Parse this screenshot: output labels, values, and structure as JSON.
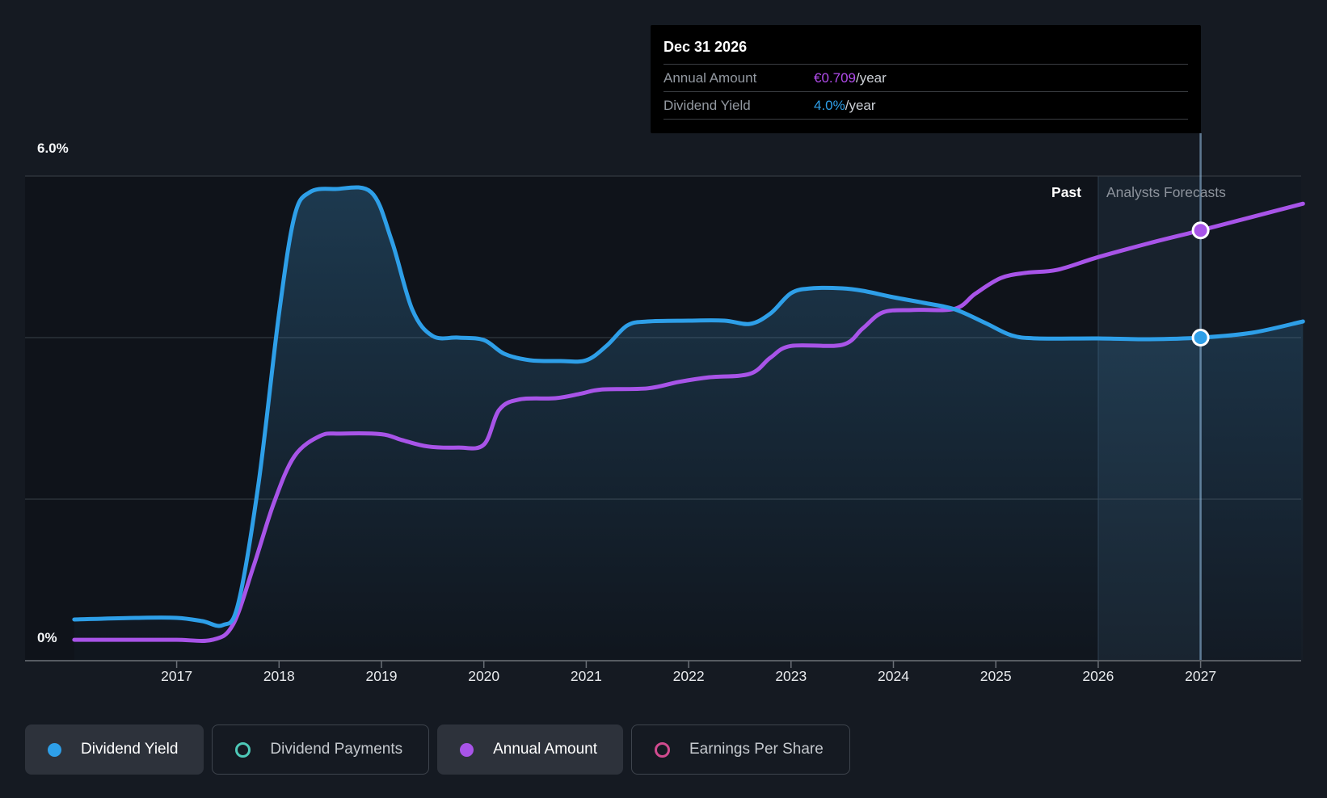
{
  "page": {
    "background": "#151a22",
    "plot_background": "#0f131a"
  },
  "tooltip": {
    "title": "Dec 31 2026",
    "rows": [
      {
        "label": "Annual Amount",
        "value": "€0.709",
        "suffix": "/year",
        "value_color": "#b14ceb"
      },
      {
        "label": "Dividend Yield",
        "value": "4.0%",
        "suffix": "/year",
        "value_color": "#2e9fe8"
      }
    ]
  },
  "axis": {
    "y_top_label": "6.0%",
    "y_bottom_label": "0%",
    "x_tick_labels": [
      "2017",
      "2018",
      "2019",
      "2020",
      "2021",
      "2022",
      "2023",
      "2024",
      "2025",
      "2026",
      "2027"
    ],
    "past_label": "Past",
    "forecast_label": "Analysts Forecasts"
  },
  "colors": {
    "yield_line": "#2e9fe8",
    "amount_line": "#a854e8",
    "payments_ring": "#4ec9b8",
    "eps_ring": "#d14b8f",
    "gridline": "#3a4048",
    "axis_line": "#565b62",
    "tick": "#6a6f76",
    "area_fill": "62,148,205",
    "band_fill": "rgba(110,165,220,0.10)",
    "band_fill_right": "rgba(110,165,220,0.035)",
    "hover_line": "rgba(155,198,236,0.55)",
    "band_edge": "rgba(150,190,230,0.22)"
  },
  "chart_data": {
    "type": "line",
    "title": "Dividend history and forecast",
    "x_range": [
      2016,
      2028
    ],
    "x_ticks": [
      2017,
      2018,
      2019,
      2020,
      2021,
      2022,
      2023,
      2024,
      2025,
      2026,
      2027
    ],
    "y_axis": {
      "unit": "%",
      "range": [
        0,
        6
      ],
      "gridlines_pct": [
        2,
        4,
        6
      ],
      "labels_shown": [
        "6.0%",
        "0%"
      ]
    },
    "forecast_start_year": 2026,
    "grid": "horizontal-only",
    "legend_position": "bottom-left",
    "highlight": {
      "year": 2027,
      "date": "Dec 31 2026",
      "annual_amount_eur": 0.709,
      "dividend_yield_pct": 4.0
    },
    "series": [
      {
        "name": "Dividend Yield",
        "unit": "%",
        "color": "#2e9fe8",
        "style": "area",
        "points": [
          [
            2016.0,
            0.51
          ],
          [
            2016.6,
            0.53
          ],
          [
            2017.0,
            0.53
          ],
          [
            2017.25,
            0.49
          ],
          [
            2017.45,
            0.44
          ],
          [
            2017.6,
            0.7
          ],
          [
            2017.8,
            2.2
          ],
          [
            2018.0,
            4.3
          ],
          [
            2018.15,
            5.5
          ],
          [
            2018.3,
            5.8
          ],
          [
            2018.55,
            5.84
          ],
          [
            2018.9,
            5.8
          ],
          [
            2019.1,
            5.2
          ],
          [
            2019.3,
            4.35
          ],
          [
            2019.5,
            4.02
          ],
          [
            2019.75,
            4.0
          ],
          [
            2020.0,
            3.97
          ],
          [
            2020.2,
            3.8
          ],
          [
            2020.45,
            3.72
          ],
          [
            2020.75,
            3.71
          ],
          [
            2021.0,
            3.72
          ],
          [
            2021.2,
            3.9
          ],
          [
            2021.4,
            4.15
          ],
          [
            2021.6,
            4.2
          ],
          [
            2022.0,
            4.21
          ],
          [
            2022.35,
            4.21
          ],
          [
            2022.6,
            4.17
          ],
          [
            2022.8,
            4.3
          ],
          [
            2023.0,
            4.55
          ],
          [
            2023.2,
            4.61
          ],
          [
            2023.5,
            4.61
          ],
          [
            2023.7,
            4.58
          ],
          [
            2024.0,
            4.5
          ],
          [
            2024.3,
            4.43
          ],
          [
            2024.6,
            4.35
          ],
          [
            2024.9,
            4.18
          ],
          [
            2025.15,
            4.03
          ],
          [
            2025.4,
            3.99
          ],
          [
            2026.0,
            3.99
          ],
          [
            2026.5,
            3.98
          ],
          [
            2027.0,
            4.0
          ],
          [
            2027.5,
            4.06
          ],
          [
            2028.0,
            4.2
          ]
        ]
      },
      {
        "name": "Annual Amount",
        "unit": "EUR/year",
        "color": "#a854e8",
        "style": "line",
        "points": [
          [
            2016.0,
            0.004
          ],
          [
            2016.6,
            0.004
          ],
          [
            2017.0,
            0.004
          ],
          [
            2017.35,
            0.004
          ],
          [
            2017.55,
            0.03
          ],
          [
            2017.75,
            0.13
          ],
          [
            2017.95,
            0.24
          ],
          [
            2018.15,
            0.32
          ],
          [
            2018.4,
            0.355
          ],
          [
            2018.6,
            0.359
          ],
          [
            2019.0,
            0.358
          ],
          [
            2019.2,
            0.348
          ],
          [
            2019.45,
            0.337
          ],
          [
            2019.75,
            0.335
          ],
          [
            2020.0,
            0.34
          ],
          [
            2020.15,
            0.4
          ],
          [
            2020.35,
            0.418
          ],
          [
            2020.7,
            0.42
          ],
          [
            2020.95,
            0.428
          ],
          [
            2021.15,
            0.435
          ],
          [
            2021.6,
            0.437
          ],
          [
            2021.9,
            0.448
          ],
          [
            2022.2,
            0.456
          ],
          [
            2022.6,
            0.462
          ],
          [
            2022.8,
            0.49
          ],
          [
            2023.0,
            0.51
          ],
          [
            2023.5,
            0.512
          ],
          [
            2023.7,
            0.54
          ],
          [
            2023.9,
            0.568
          ],
          [
            2024.2,
            0.572
          ],
          [
            2024.6,
            0.574
          ],
          [
            2024.8,
            0.6
          ],
          [
            2025.05,
            0.627
          ],
          [
            2025.3,
            0.636
          ],
          [
            2025.6,
            0.641
          ],
          [
            2026.0,
            0.663
          ],
          [
            2026.5,
            0.687
          ],
          [
            2027.0,
            0.709
          ],
          [
            2027.5,
            0.732
          ],
          [
            2028.0,
            0.755
          ]
        ]
      }
    ]
  },
  "legend": [
    {
      "label": "Dividend Yield",
      "marker": "filled",
      "color": "#2e9fe8",
      "active": true
    },
    {
      "label": "Dividend Payments",
      "marker": "ring",
      "color": "#4ec9b8",
      "active": false
    },
    {
      "label": "Annual Amount",
      "marker": "filled",
      "color": "#a854e8",
      "active": true
    },
    {
      "label": "Earnings Per Share",
      "marker": "ring",
      "color": "#d14b8f",
      "active": false
    }
  ]
}
